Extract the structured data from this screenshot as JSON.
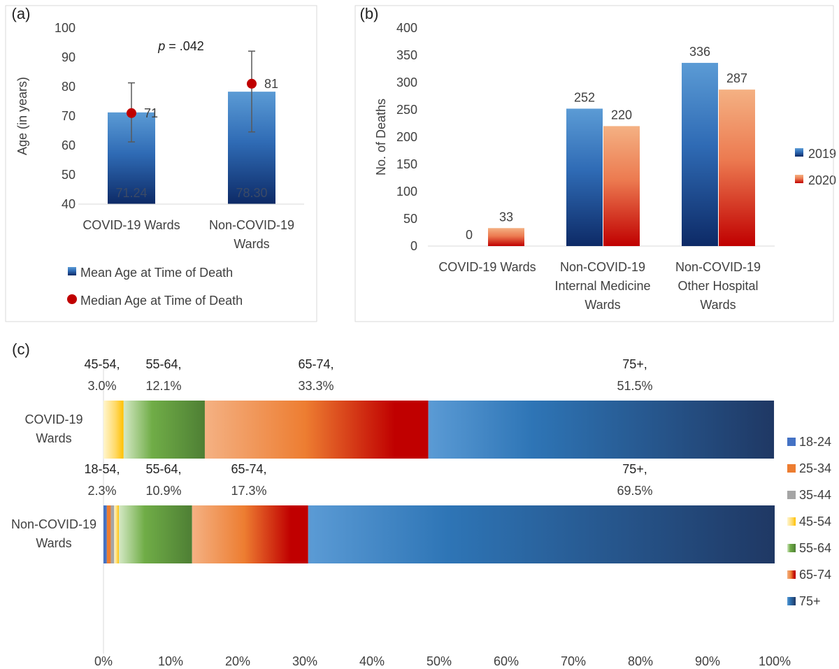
{
  "chart_data": [
    {
      "panel": "(a)",
      "type": "bar",
      "ylabel": "Age (in years)",
      "ylim": [
        40,
        100
      ],
      "yticks": [
        40,
        50,
        60,
        70,
        80,
        90,
        100
      ],
      "categories": [
        "COVID-19 Wards",
        "Non-COVID-19 Wards"
      ],
      "category_lines": [
        [
          "COVID-19 Wards"
        ],
        [
          "Non-COVID-19",
          "Wards"
        ]
      ],
      "series": [
        {
          "name": "Mean Age at Time of Death",
          "values": [
            71.24,
            78.3
          ],
          "labels": [
            "71.24",
            "78.30"
          ],
          "color": "#5b9bd5"
        },
        {
          "name": "Median Age at Time of Death",
          "values": [
            71,
            81
          ],
          "labels": [
            "71",
            "81"
          ],
          "color": "#c00000"
        }
      ],
      "error_bars": [
        [
          61.2,
          81.3
        ],
        [
          64.6,
          92.1
        ]
      ],
      "annotation": {
        "italic": "p",
        "text": " = .042"
      },
      "grid": false
    },
    {
      "panel": "(b)",
      "type": "bar",
      "ylabel": "No. of Deaths",
      "ylim": [
        0,
        400
      ],
      "yticks": [
        0,
        50,
        100,
        150,
        200,
        250,
        300,
        350,
        400
      ],
      "categories": [
        "COVID-19 Wards",
        "Non-COVID-19 Internal Medicine Wards",
        "Non-COVID-19 Other Hospital Wards"
      ],
      "category_lines": [
        [
          "COVID-19 Wards"
        ],
        [
          "Non-COVID-19",
          "Internal Medicine",
          "Wards"
        ],
        [
          "Non-COVID-19",
          "Other Hospital",
          "Wards"
        ]
      ],
      "series": [
        {
          "name": "2019",
          "values": [
            0,
            252,
            336
          ],
          "color": "#2e75b6"
        },
        {
          "name": "2020",
          "values": [
            33,
            220,
            287
          ],
          "color": "#e84d1c"
        }
      ],
      "legend": "right",
      "grid": false
    },
    {
      "panel": "(c)",
      "type": "bar",
      "orientation": "horizontal-stacked",
      "xlim": [
        0,
        100
      ],
      "xticks": [
        "0%",
        "10%",
        "20%",
        "30%",
        "40%",
        "50%",
        "60%",
        "70%",
        "80%",
        "90%",
        "100%"
      ],
      "categories": [
        "COVID-19 Wards",
        "Non-COVID-19 Wards"
      ],
      "category_lines": [
        [
          "COVID-19",
          "Wards"
        ],
        [
          "Non-COVID-19",
          "Wards"
        ]
      ],
      "legend_items": [
        "18-24",
        "25-34",
        "35-44",
        "45-54",
        "55-64",
        "65-74",
        "75+"
      ],
      "legend_colors": [
        "#4472c4",
        "#ed7d31",
        "#a5a5a5",
        "#ffc000",
        "#70ad47",
        "#e03a1a",
        "#2e6bb0"
      ],
      "bars": [
        {
          "segments": [
            {
              "group": "45-54",
              "value": 3.0
            },
            {
              "group": "55-64",
              "value": 12.1
            },
            {
              "group": "65-74",
              "value": 33.3
            },
            {
              "group": "75+",
              "value": 51.5
            }
          ],
          "labels": [
            [
              "45-54,",
              "3.0%"
            ],
            [
              "55-64,",
              "12.1%"
            ],
            [
              "65-74,",
              "33.3%"
            ],
            [
              "75+,",
              "51.5%"
            ]
          ]
        },
        {
          "segments": [
            {
              "group": "18-24",
              "value": 0.5
            },
            {
              "group": "25-34",
              "value": 0.6
            },
            {
              "group": "35-44",
              "value": 0.5
            },
            {
              "group": "45-54",
              "value": 0.7
            },
            {
              "group": "55-64",
              "value": 10.9
            },
            {
              "group": "65-74",
              "value": 17.3
            },
            {
              "group": "75+",
              "value": 69.5
            }
          ],
          "labels": [
            [
              "18-54,",
              "2.3%"
            ],
            [
              "55-64,",
              "10.9%"
            ],
            [
              "65-74,",
              "17.3%"
            ],
            [
              "75+,",
              "69.5%"
            ]
          ]
        }
      ]
    }
  ]
}
